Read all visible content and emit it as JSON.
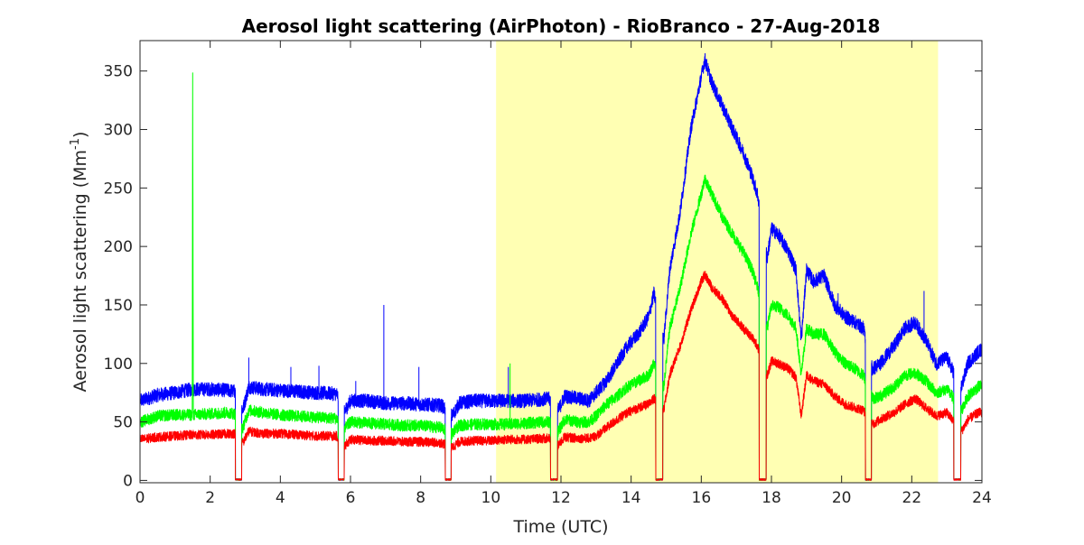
{
  "chart_data": {
    "type": "line",
    "title": "Aerosol light scattering (AirPhoton) - RioBranco - 27-Aug-2018",
    "xlabel": "Time (UTC)",
    "ylabel_main": "Aerosol light scattering (Mm",
    "ylabel_sup": "-1",
    "ylabel_end": ")",
    "xlim": [
      0,
      24
    ],
    "ylim": [
      -2,
      376
    ],
    "xticks": [
      0,
      2,
      4,
      6,
      8,
      10,
      12,
      14,
      16,
      18,
      20,
      22,
      24
    ],
    "yticks": [
      0,
      50,
      100,
      150,
      200,
      250,
      300,
      350
    ],
    "grid": false,
    "highlight": {
      "x0": 10.15,
      "x1": 22.75,
      "color": "#ffffb3"
    },
    "dropouts": [
      [
        2.72,
        2.9
      ],
      [
        5.65,
        5.82
      ],
      [
        8.7,
        8.87
      ],
      [
        11.7,
        11.9
      ],
      [
        14.7,
        14.9
      ],
      [
        17.65,
        17.85
      ],
      [
        20.68,
        20.85
      ],
      [
        23.2,
        23.4
      ]
    ],
    "series": [
      {
        "color": "#0000ff",
        "noise": 6,
        "values": [
          [
            0.02,
            68
          ],
          [
            0.5,
            73
          ],
          [
            1,
            75
          ],
          [
            1.5,
            78
          ],
          [
            2,
            78
          ],
          [
            2.5,
            77
          ],
          [
            2.7,
            76
          ],
          [
            2.93,
            60
          ],
          [
            3.1,
            80
          ],
          [
            3.5,
            78
          ],
          [
            4,
            77
          ],
          [
            4.5,
            76
          ],
          [
            5,
            75
          ],
          [
            5.6,
            74
          ],
          [
            5.85,
            60
          ],
          [
            6,
            68
          ],
          [
            6.5,
            68
          ],
          [
            7,
            66
          ],
          [
            7.5,
            66
          ],
          [
            8,
            65
          ],
          [
            8.6,
            64
          ],
          [
            8.9,
            55
          ],
          [
            9.1,
            66
          ],
          [
            9.5,
            68
          ],
          [
            10,
            68
          ],
          [
            10.5,
            68
          ],
          [
            11,
            68
          ],
          [
            11.65,
            70
          ],
          [
            11.93,
            60
          ],
          [
            12.1,
            72
          ],
          [
            12.5,
            70
          ],
          [
            12.8,
            68
          ],
          [
            13,
            75
          ],
          [
            13.3,
            85
          ],
          [
            13.6,
            100
          ],
          [
            13.9,
            115
          ],
          [
            14.2,
            125
          ],
          [
            14.5,
            140
          ],
          [
            14.65,
            160
          ],
          [
            14.93,
            120
          ],
          [
            15.1,
            180
          ],
          [
            15.4,
            230
          ],
          [
            15.7,
            300
          ],
          [
            16,
            345
          ],
          [
            16.1,
            360
          ],
          [
            16.3,
            340
          ],
          [
            16.6,
            320
          ],
          [
            16.9,
            300
          ],
          [
            17.2,
            280
          ],
          [
            17.45,
            260
          ],
          [
            17.6,
            245
          ],
          [
            17.88,
            190
          ],
          [
            18,
            215
          ],
          [
            18.2,
            210
          ],
          [
            18.5,
            195
          ],
          [
            18.7,
            180
          ],
          [
            18.85,
            120
          ],
          [
            19,
            180
          ],
          [
            19.2,
            170
          ],
          [
            19.5,
            175
          ],
          [
            19.8,
            150
          ],
          [
            20.1,
            140
          ],
          [
            20.4,
            135
          ],
          [
            20.62,
            130
          ],
          [
            20.88,
            95
          ],
          [
            21.1,
            100
          ],
          [
            21.5,
            115
          ],
          [
            21.8,
            130
          ],
          [
            22.1,
            135
          ],
          [
            22.4,
            120
          ],
          [
            22.7,
            100
          ],
          [
            23,
            105
          ],
          [
            23.15,
            95
          ],
          [
            23.42,
            80
          ],
          [
            23.6,
            100
          ],
          [
            23.9,
            110
          ],
          [
            24,
            112
          ]
        ]
      },
      {
        "color": "#00ff00",
        "noise": 5,
        "values": [
          [
            0.02,
            50
          ],
          [
            0.5,
            55
          ],
          [
            1,
            56
          ],
          [
            1.49,
            56
          ],
          [
            1.5,
            350
          ],
          [
            1.52,
            56
          ],
          [
            2,
            57
          ],
          [
            2.5,
            58
          ],
          [
            2.7,
            57
          ],
          [
            2.93,
            45
          ],
          [
            3.1,
            60
          ],
          [
            3.5,
            58
          ],
          [
            4,
            56
          ],
          [
            4.5,
            55
          ],
          [
            5,
            54
          ],
          [
            5.6,
            53
          ],
          [
            5.85,
            45
          ],
          [
            6,
            50
          ],
          [
            6.5,
            49
          ],
          [
            7,
            48
          ],
          [
            7.5,
            47
          ],
          [
            8,
            47
          ],
          [
            8.6,
            45
          ],
          [
            8.9,
            40
          ],
          [
            9.1,
            47
          ],
          [
            9.5,
            48
          ],
          [
            10,
            48
          ],
          [
            10.5,
            48
          ],
          [
            11,
            49
          ],
          [
            11.65,
            50
          ],
          [
            11.93,
            42
          ],
          [
            12.1,
            52
          ],
          [
            12.5,
            50
          ],
          [
            12.8,
            50
          ],
          [
            13,
            55
          ],
          [
            13.3,
            65
          ],
          [
            13.6,
            72
          ],
          [
            13.9,
            80
          ],
          [
            14.2,
            85
          ],
          [
            14.5,
            90
          ],
          [
            14.65,
            100
          ],
          [
            14.93,
            80
          ],
          [
            15.1,
            130
          ],
          [
            15.4,
            165
          ],
          [
            15.7,
            210
          ],
          [
            16,
            245
          ],
          [
            16.1,
            258
          ],
          [
            16.3,
            245
          ],
          [
            16.6,
            225
          ],
          [
            16.9,
            210
          ],
          [
            17.2,
            195
          ],
          [
            17.45,
            180
          ],
          [
            17.6,
            165
          ],
          [
            17.88,
            130
          ],
          [
            18,
            150
          ],
          [
            18.2,
            148
          ],
          [
            18.5,
            140
          ],
          [
            18.7,
            130
          ],
          [
            18.85,
            90
          ],
          [
            19,
            130
          ],
          [
            19.2,
            125
          ],
          [
            19.5,
            125
          ],
          [
            19.8,
            110
          ],
          [
            20.1,
            100
          ],
          [
            20.4,
            95
          ],
          [
            20.62,
            90
          ],
          [
            20.88,
            70
          ],
          [
            21.1,
            72
          ],
          [
            21.5,
            80
          ],
          [
            21.8,
            90
          ],
          [
            22.1,
            92
          ],
          [
            22.4,
            85
          ],
          [
            22.7,
            75
          ],
          [
            23,
            78
          ],
          [
            23.15,
            72
          ],
          [
            23.42,
            60
          ],
          [
            23.6,
            72
          ],
          [
            23.9,
            80
          ],
          [
            24,
            82
          ]
        ]
      },
      {
        "color": "#ff0000",
        "noise": 4,
        "values": [
          [
            0.02,
            35
          ],
          [
            0.5,
            37
          ],
          [
            1,
            38
          ],
          [
            1.5,
            39
          ],
          [
            2,
            39
          ],
          [
            2.5,
            40
          ],
          [
            2.7,
            40
          ],
          [
            2.93,
            32
          ],
          [
            3.1,
            42
          ],
          [
            3.5,
            40
          ],
          [
            4,
            40
          ],
          [
            4.5,
            39
          ],
          [
            5,
            38
          ],
          [
            5.6,
            38
          ],
          [
            5.85,
            30
          ],
          [
            6,
            35
          ],
          [
            6.5,
            34
          ],
          [
            7,
            34
          ],
          [
            7.5,
            33
          ],
          [
            8,
            33
          ],
          [
            8.6,
            32
          ],
          [
            8.9,
            28
          ],
          [
            9.1,
            33
          ],
          [
            9.5,
            34
          ],
          [
            10,
            34
          ],
          [
            10.5,
            35
          ],
          [
            11,
            35
          ],
          [
            11.65,
            36
          ],
          [
            11.93,
            30
          ],
          [
            12.1,
            37
          ],
          [
            12.5,
            36
          ],
          [
            12.8,
            36
          ],
          [
            13,
            38
          ],
          [
            13.3,
            45
          ],
          [
            13.6,
            52
          ],
          [
            13.9,
            58
          ],
          [
            14.2,
            62
          ],
          [
            14.5,
            65
          ],
          [
            14.65,
            70
          ],
          [
            14.93,
            60
          ],
          [
            15.1,
            90
          ],
          [
            15.4,
            115
          ],
          [
            15.7,
            145
          ],
          [
            16,
            170
          ],
          [
            16.1,
            176
          ],
          [
            16.3,
            165
          ],
          [
            16.6,
            155
          ],
          [
            16.9,
            140
          ],
          [
            17.2,
            130
          ],
          [
            17.45,
            122
          ],
          [
            17.6,
            115
          ],
          [
            17.88,
            90
          ],
          [
            18,
            102
          ],
          [
            18.2,
            100
          ],
          [
            18.5,
            95
          ],
          [
            18.7,
            88
          ],
          [
            18.85,
            55
          ],
          [
            19,
            90
          ],
          [
            19.2,
            85
          ],
          [
            19.5,
            82
          ],
          [
            19.8,
            72
          ],
          [
            20.1,
            65
          ],
          [
            20.4,
            62
          ],
          [
            20.62,
            60
          ],
          [
            20.88,
            48
          ],
          [
            21.1,
            52
          ],
          [
            21.5,
            58
          ],
          [
            21.8,
            65
          ],
          [
            22.1,
            70
          ],
          [
            22.4,
            62
          ],
          [
            22.7,
            55
          ],
          [
            23,
            58
          ],
          [
            23.15,
            52
          ],
          [
            23.42,
            42
          ],
          [
            23.6,
            52
          ],
          [
            23.9,
            58
          ],
          [
            24,
            58
          ]
        ]
      }
    ],
    "spikes": [
      {
        "color": "#0000ff",
        "x": 3.1,
        "y": 105
      },
      {
        "color": "#0000ff",
        "x": 4.3,
        "y": 97
      },
      {
        "color": "#0000ff",
        "x": 5.1,
        "y": 98
      },
      {
        "color": "#0000ff",
        "x": 6.15,
        "y": 85
      },
      {
        "color": "#0000ff",
        "x": 6.95,
        "y": 150
      },
      {
        "color": "#0000ff",
        "x": 7.95,
        "y": 97
      },
      {
        "color": "#0000ff",
        "x": 10.5,
        "y": 97
      },
      {
        "color": "#00ff00",
        "x": 10.55,
        "y": 100
      },
      {
        "color": "#0000ff",
        "x": 19.9,
        "y": 160
      },
      {
        "color": "#0000ff",
        "x": 22.35,
        "y": 162
      }
    ]
  }
}
